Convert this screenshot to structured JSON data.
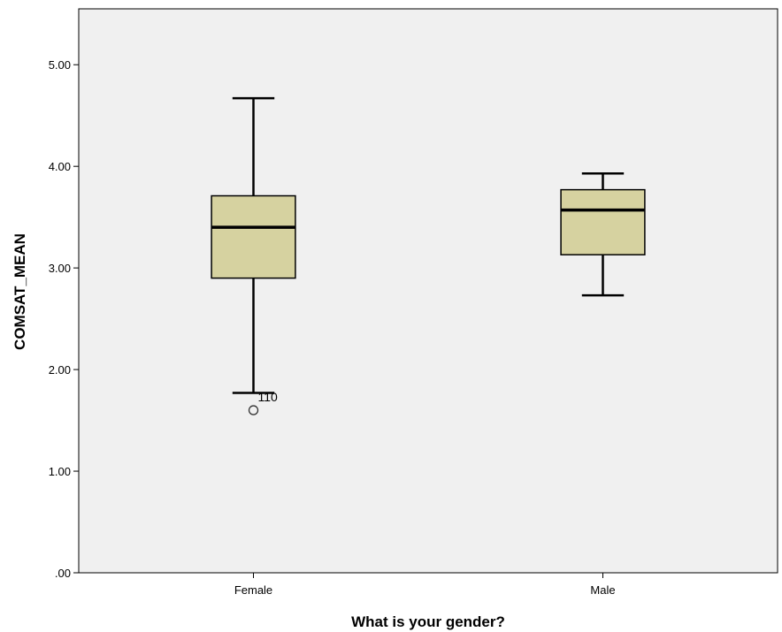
{
  "chart_data": {
    "type": "boxplot",
    "xlabel": "What is your gender?",
    "ylabel": "COMSAT_MEAN",
    "ylim": [
      0,
      5.55
    ],
    "yticks": [
      0,
      1,
      2,
      3,
      4,
      5
    ],
    "ytick_labels": [
      ".00",
      "1.00",
      "2.00",
      "3.00",
      "4.00",
      "5.00"
    ],
    "grid": false,
    "categories": [
      "Female",
      "Male"
    ],
    "boxes": [
      {
        "category": "Female",
        "whisker_low": 1.77,
        "q1": 2.9,
        "median": 3.4,
        "q3": 3.71,
        "whisker_high": 4.67,
        "outliers": [
          {
            "value": 1.6,
            "label": "110"
          }
        ]
      },
      {
        "category": "Male",
        "whisker_low": 2.73,
        "q1": 3.13,
        "median": 3.57,
        "q3": 3.77,
        "whisker_high": 3.93,
        "outliers": []
      }
    ],
    "colors": {
      "plot_background": "#f0f0f0",
      "box_fill": "#d6d2a0",
      "line": "#000000"
    }
  }
}
